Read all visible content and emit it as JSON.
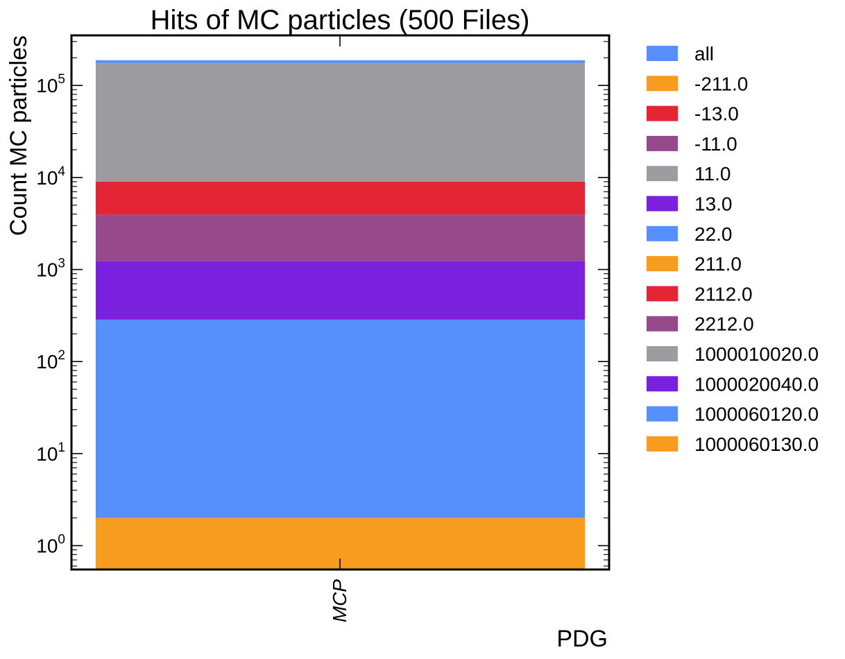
{
  "chart_data": {
    "type": "bar",
    "stacked": true,
    "title": "Hits of MC particles (500 Files)",
    "xlabel": "PDG",
    "ylabel": "Count MC particles",
    "yscale": "log",
    "ylim": [
      0.55,
      350000
    ],
    "categories": [
      "MCP"
    ],
    "grid": false,
    "legend_position": "outside-right",
    "legend": [
      "all",
      "-211.0",
      "-13.0",
      "-11.0",
      "11.0",
      "13.0",
      "22.0",
      "211.0",
      "2112.0",
      "2212.0",
      "1000010020.0",
      "1000020040.0",
      "1000060120.0",
      "1000060130.0"
    ],
    "series_colors": {
      "all": "#5790fc",
      "-211.0": "#f89c20",
      "-13.0": "#e42536",
      "-11.0": "#964a8b",
      "11.0": "#9c9ca1",
      "13.0": "#7a21dd",
      "22.0": "#5790fc",
      "211.0": "#f89c20",
      "2112.0": "#e42536",
      "2212.0": "#964a8b",
      "1000010020.0": "#9c9ca1",
      "1000020040.0": "#7a21dd",
      "1000060120.0": "#5790fc",
      "1000060130.0": "#f89c20"
    },
    "visible_segments": [
      {
        "name": "-211.0",
        "from": 0.55,
        "to": 2
      },
      {
        "name": "22.0",
        "from": 2,
        "to": 285
      },
      {
        "name": "13.0",
        "from": 285,
        "to": 1230
      },
      {
        "name": "-11.0",
        "from": 1230,
        "to": 3950
      },
      {
        "name": "-13.0",
        "from": 3950,
        "to": 9000
      },
      {
        "name": "11.0",
        "from": 9000,
        "to": 176000
      },
      {
        "name": "all",
        "from": 176000,
        "to": 188000
      }
    ],
    "yticks": [
      {
        "value": 1,
        "base": "10",
        "exp": "0"
      },
      {
        "value": 10,
        "base": "10",
        "exp": "1"
      },
      {
        "value": 100,
        "base": "10",
        "exp": "2"
      },
      {
        "value": 1000,
        "base": "10",
        "exp": "3"
      },
      {
        "value": 10000,
        "base": "10",
        "exp": "4"
      },
      {
        "value": 100000,
        "base": "10",
        "exp": "5"
      }
    ]
  }
}
